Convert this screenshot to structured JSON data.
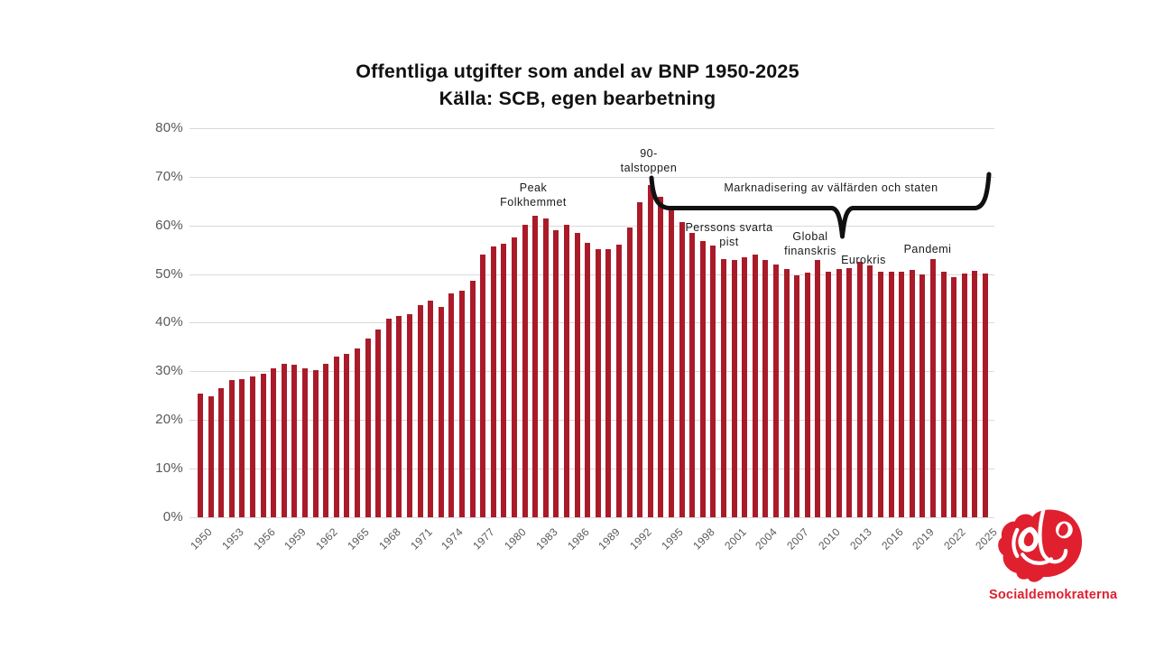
{
  "title": {
    "line1": "Offentliga utgifter som andel av BNP 1950-2025",
    "line2": "Källa: SCB, egen bearbetning"
  },
  "chart_data": {
    "type": "bar",
    "title": "Offentliga utgifter som andel av BNP 1950-2025",
    "subtitle": "Källa: SCB, egen bearbetning",
    "ylabel": "",
    "xlabel": "",
    "ylim": [
      0,
      80
    ],
    "grid": "horizontal",
    "bar_color": "#aa1b2a",
    "year_start": 1950,
    "values": [
      25.5,
      24.8,
      26.5,
      28.3,
      28.4,
      29.0,
      29.5,
      30.6,
      31.6,
      31.3,
      30.6,
      30.3,
      31.6,
      33.0,
      33.5,
      34.7,
      36.8,
      38.6,
      40.8,
      41.3,
      41.7,
      43.7,
      44.5,
      43.2,
      46.0,
      46.6,
      48.7,
      54.0,
      55.7,
      56.3,
      57.5,
      60.2,
      62.0,
      61.4,
      59.1,
      60.2,
      58.4,
      56.5,
      55.1,
      55.1,
      56.1,
      59.6,
      64.8,
      68.2,
      65.8,
      63.2,
      60.7,
      58.5,
      56.7,
      55.8,
      53.0,
      52.8,
      53.5,
      54.0,
      52.8,
      52.0,
      51.1,
      49.7,
      50.2,
      52.9,
      50.4,
      51.0,
      51.2,
      52.5,
      51.7,
      50.5,
      50.4,
      50.4,
      50.8,
      49.9,
      53.0,
      50.5,
      49.3,
      50.1,
      50.7,
      50.1
    ],
    "y_tick_labels": [
      "0%",
      "10%",
      "20%",
      "30%",
      "40%",
      "50%",
      "60%",
      "70%",
      "80%"
    ],
    "y_tick_values": [
      0,
      10,
      20,
      30,
      40,
      50,
      60,
      70,
      80
    ],
    "x_tick_years": [
      1950,
      1953,
      1956,
      1959,
      1962,
      1965,
      1968,
      1971,
      1974,
      1977,
      1980,
      1983,
      1986,
      1989,
      1992,
      1995,
      1998,
      2001,
      2004,
      2007,
      2010,
      2013,
      2016,
      2019,
      2022,
      2025
    ],
    "annotations": [
      {
        "id": "peak-folkhemmet",
        "lines": [
          "Peak",
          "Folkhemmet"
        ]
      },
      {
        "id": "nittiotalstoppen",
        "lines": [
          "90-",
          "talstoppen"
        ]
      },
      {
        "id": "perssons-svarta-pist",
        "lines": [
          "Perssons svarta",
          "pist"
        ]
      },
      {
        "id": "marknadisering",
        "lines": [
          "Marknadisering av välfärden och staten"
        ]
      },
      {
        "id": "global-finanskris",
        "lines": [
          "Global",
          "finanskris"
        ]
      },
      {
        "id": "eurokris",
        "lines": [
          "Eurokris"
        ]
      },
      {
        "id": "pandemi",
        "lines": [
          "Pandemi"
        ]
      }
    ]
  },
  "logo": {
    "text": "Socialdemokraterna",
    "color": "#e0202f"
  }
}
